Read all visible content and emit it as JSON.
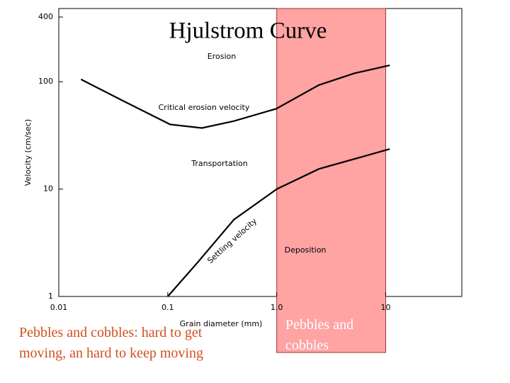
{
  "chart_data": {
    "type": "line",
    "title": "Hjulstrom Curve",
    "x_label": "Grain diameter (mm)",
    "y_label": "Velocity (cm/sec)",
    "log_x": true,
    "log_y": true,
    "xlim": [
      0.01,
      50
    ],
    "xticks": [
      0.01,
      0.1,
      {
        "value": 1,
        "label": "1.0"
      },
      10
    ],
    "ylim": [
      1,
      480
    ],
    "yticks": [
      1,
      10,
      100,
      400
    ],
    "series": [
      {
        "name": "Critical erosion velocity",
        "color": "#000000",
        "x": [
          0.016,
          0.037,
          0.105,
          0.206,
          0.405,
          0.99,
          2.44,
          5.2,
          10.9
        ],
        "values": [
          105,
          68,
          40,
          37,
          43,
          56,
          93,
          120,
          142
        ]
      },
      {
        "name": "Settling velocity",
        "color": "#000000",
        "x": [
          0.1,
          0.19,
          0.405,
          1,
          2.44,
          10.9
        ],
        "values": [
          1,
          2.1,
          5.2,
          10,
          15.4,
          23.6
        ]
      }
    ],
    "annotations": [
      "Erosion",
      "Transportation",
      "Deposition"
    ],
    "highlight": {
      "x_range": [
        1,
        10
      ],
      "color": "#ffa3a3",
      "label": "Pebbles and cobbles"
    },
    "note": "Pebbles and cobbles: hard to get moving, an hard to keep moving"
  }
}
